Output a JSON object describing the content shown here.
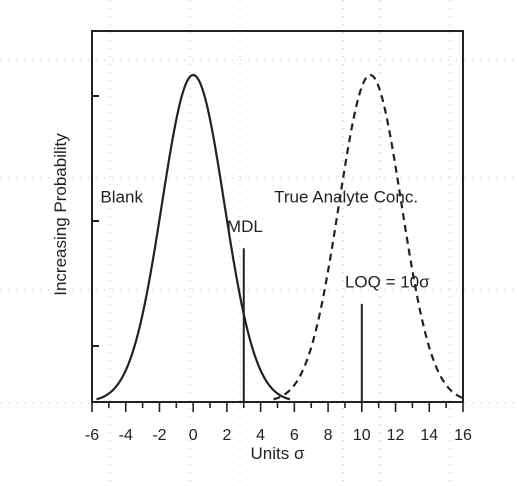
{
  "chart_data": {
    "type": "line",
    "title": "",
    "xlabel": "Units σ",
    "ylabel": "Increasing Probability",
    "xlim": [
      -6,
      16
    ],
    "ylim": [
      0,
      1.0
    ],
    "x_ticks": [
      -6,
      -4,
      -2,
      0,
      2,
      4,
      6,
      8,
      10,
      12,
      14,
      16
    ],
    "y_ticks_shown": false,
    "grid": false,
    "series": [
      {
        "name": "Blank",
        "distribution": "normal",
        "mean": 0,
        "sd": 1.85,
        "peak": 1.0,
        "style": "solid",
        "color": "#222222"
      },
      {
        "name": "True Analyte Conc.",
        "distribution": "normal",
        "mean": 10.5,
        "sd": 1.85,
        "peak": 1.0,
        "style": "dashed",
        "color": "#222222"
      }
    ],
    "annotations": [
      {
        "text": "Blank",
        "x": -5.5,
        "y": 0.61
      },
      {
        "text": "True Analyte Conc.",
        "x": 4.8,
        "y": 0.61
      },
      {
        "text": "MDL",
        "x": 2.0,
        "y": 0.52,
        "line_x": 3,
        "line_top": 0.47
      },
      {
        "text": "LOQ = 10σ",
        "x": 9.0,
        "y": 0.35,
        "line_x": 10,
        "line_top": 0.3
      }
    ]
  }
}
